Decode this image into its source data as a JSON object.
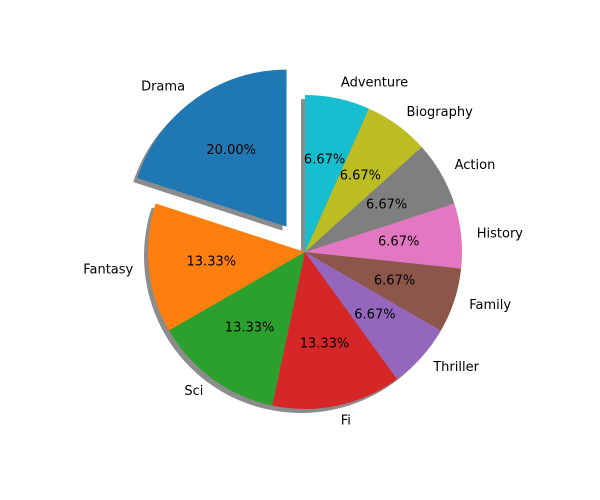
{
  "chart_data": {
    "type": "pie",
    "title": "",
    "start_angle_deg": 90,
    "direction": "counterclockwise",
    "shadow": true,
    "autopct_format": "%.2f%%",
    "categories": [
      "Drama",
      "Fantasy",
      "Sci",
      "Fi",
      "Thriller",
      "Family",
      "History",
      "Action",
      "Biography",
      "Adventure"
    ],
    "values": [
      20.0,
      13.33,
      13.33,
      13.33,
      6.67,
      6.67,
      6.67,
      6.67,
      6.67,
      6.67
    ],
    "percent_labels": [
      "20.00%",
      "13.33%",
      "13.33%",
      "13.33%",
      "6.67%",
      "6.67%",
      "6.67%",
      "6.67%",
      "6.67%",
      "6.67%"
    ],
    "explode": [
      0.2,
      0,
      0,
      0,
      0,
      0,
      0,
      0,
      0,
      0
    ],
    "colors": [
      "#1f77b4",
      "#ff7f0e",
      "#2ca02c",
      "#d62728",
      "#9467bd",
      "#8c564b",
      "#e377c2",
      "#7f7f7f",
      "#bcbd22",
      "#17becf"
    ]
  }
}
